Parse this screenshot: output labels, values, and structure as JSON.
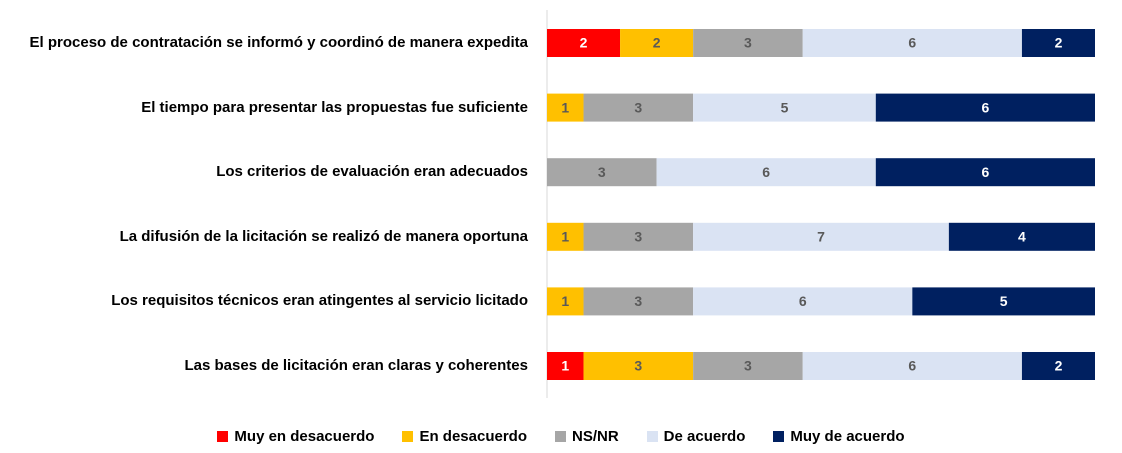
{
  "chart_data": {
    "type": "stacked-barh",
    "categories": [
      "El proceso de contratación se informó y coordinó de manera expedita",
      "El tiempo para presentar las propuestas fue suficiente",
      "Los criterios de evaluación eran adecuados",
      "La difusión de la licitación se realizó de manera oportuna",
      "Los requisitos técnicos eran atingentes al servicio licitado",
      "Las bases de licitación eran claras y coherentes"
    ],
    "series": [
      {
        "name": "Muy en desacuerdo",
        "color": "#ff0000",
        "label_color": "#ffffff",
        "values": [
          2,
          null,
          null,
          null,
          null,
          1
        ]
      },
      {
        "name": "En desacuerdo",
        "color": "#ffc000",
        "label_color": "#595959",
        "values": [
          2,
          1,
          null,
          1,
          1,
          3
        ]
      },
      {
        "name": "NS/NR",
        "color": "#a6a6a6",
        "label_color": "#595959",
        "values": [
          3,
          3,
          3,
          3,
          3,
          3
        ]
      },
      {
        "name": "De acuerdo",
        "color": "#dae3f3",
        "label_color": "#595959",
        "values": [
          6,
          5,
          6,
          7,
          6,
          6
        ]
      },
      {
        "name": "Muy de acuerdo",
        "color": "#002060",
        "label_color": "#ffffff",
        "values": [
          2,
          6,
          6,
          4,
          5,
          2
        ]
      }
    ],
    "xlim": [
      0,
      15
    ],
    "legend": "bottom"
  }
}
